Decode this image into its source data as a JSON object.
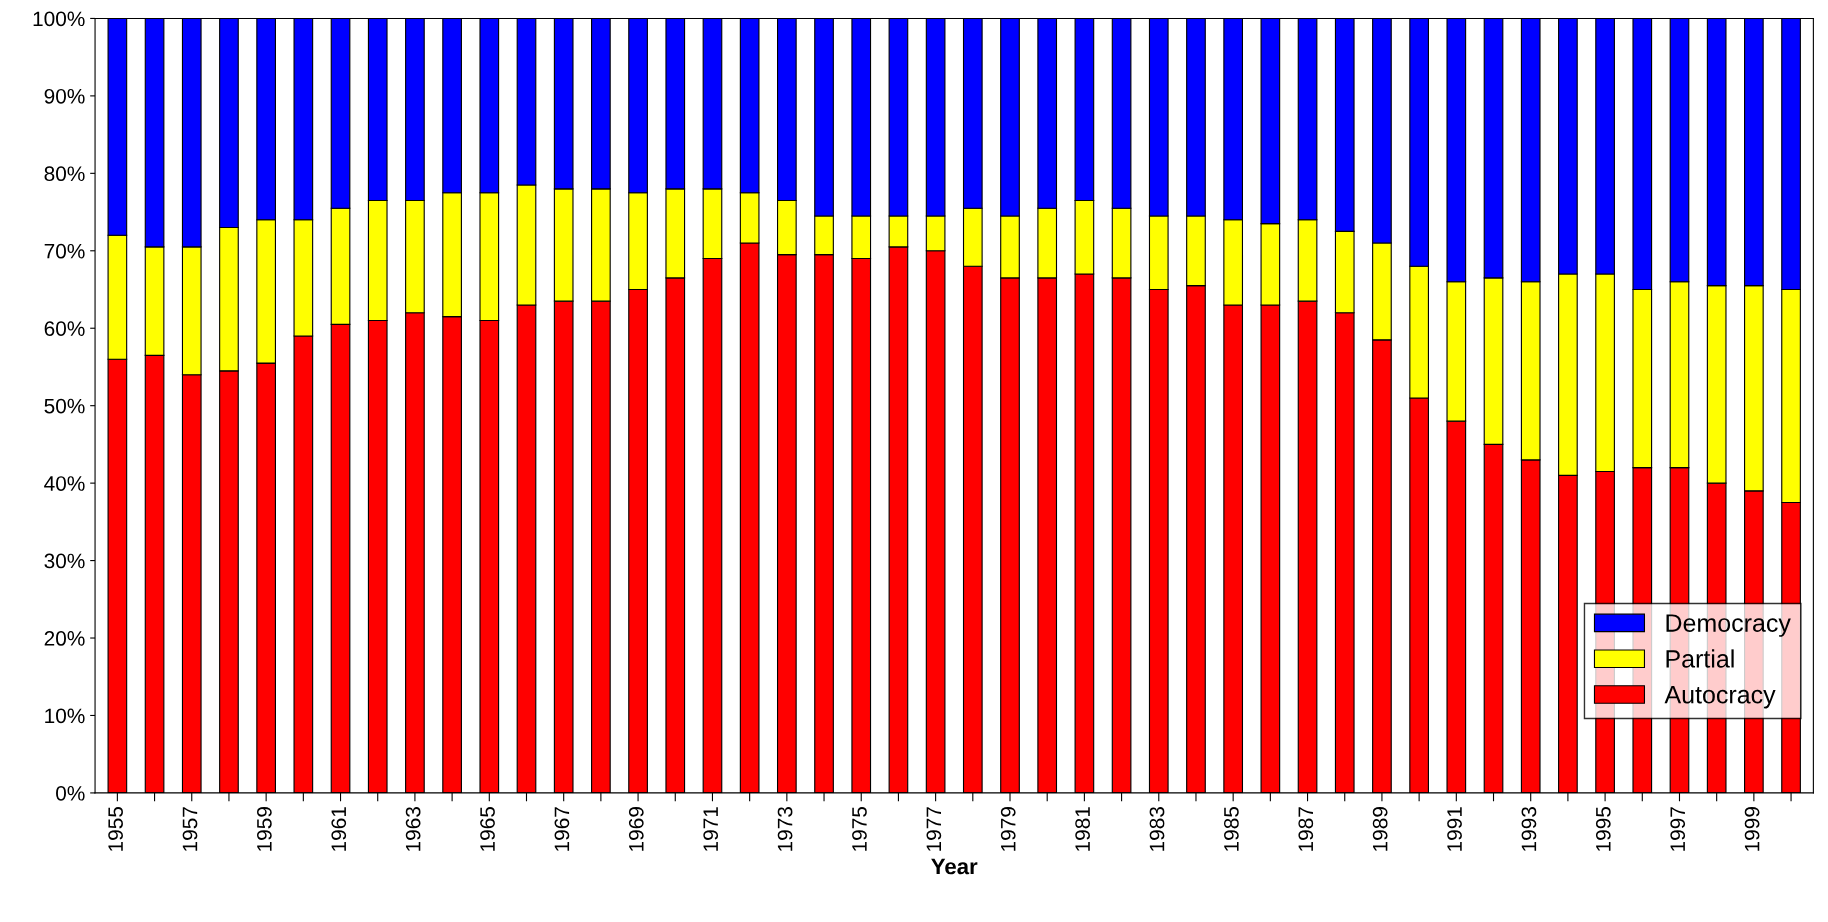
{
  "chart_data": {
    "type": "bar",
    "stacked": true,
    "xlabel": "Year",
    "categories": [
      "1955",
      null,
      "1957",
      null,
      "1959",
      null,
      "1961",
      null,
      "1963",
      null,
      "1965",
      null,
      "1967",
      null,
      "1969",
      null,
      "1971",
      null,
      "1973",
      null,
      "1975",
      null,
      "1977",
      null,
      "1979",
      null,
      "1981",
      null,
      "1983",
      null,
      "1985",
      null,
      "1987",
      null,
      "1989",
      null,
      "1991",
      null,
      "1993",
      null,
      "1995",
      null,
      "1997",
      null,
      "1999",
      null
    ],
    "series": [
      {
        "name": "Autocracy",
        "color": "#ff0000",
        "values": [
          56,
          56.5,
          54,
          54.5,
          55.5,
          59,
          60.5,
          61,
          62,
          61.5,
          61,
          63,
          63.5,
          63.5,
          65,
          66.5,
          69,
          71,
          69.5,
          69.5,
          69,
          70.5,
          70,
          68,
          66.5,
          66.5,
          67,
          66.5,
          65,
          65.5,
          63,
          63,
          63.5,
          62,
          58.5,
          51,
          48,
          45,
          43,
          41,
          41.5,
          42,
          42,
          40,
          39,
          37.5
        ]
      },
      {
        "name": "Partial",
        "color": "#ffff00",
        "values": [
          16,
          14,
          16.5,
          18.5,
          18.5,
          15,
          15,
          15.5,
          14.5,
          16,
          16.5,
          15.5,
          14.5,
          14.5,
          12.5,
          11.5,
          9,
          6.5,
          7,
          5,
          5.5,
          4,
          4.5,
          7.5,
          8,
          9,
          9.5,
          9,
          9.5,
          9,
          11,
          10.5,
          10.5,
          10.5,
          12.5,
          17,
          18,
          21.5,
          23,
          26,
          25.5,
          23,
          24,
          25.5,
          26.5,
          27.5
        ]
      },
      {
        "name": "Democracy",
        "color": "#0000ff",
        "values": [
          28,
          29.5,
          29.5,
          27,
          26,
          26,
          24.5,
          23.5,
          23.5,
          22.5,
          22.5,
          21.5,
          22,
          22,
          22.5,
          22,
          22,
          22.5,
          23.5,
          25.5,
          25.5,
          25.5,
          25.5,
          24.5,
          25.5,
          24.5,
          23.5,
          24.5,
          25.5,
          25.5,
          26,
          26.5,
          26,
          27.5,
          29,
          32,
          34,
          33.5,
          34,
          33,
          33,
          35,
          34,
          34.5,
          34.5,
          35
        ]
      }
    ],
    "ylim": [
      0,
      100
    ],
    "yticks": [
      {
        "value": 0,
        "label": "0%"
      },
      {
        "value": 10,
        "label": "10%"
      },
      {
        "value": 20,
        "label": "20%"
      },
      {
        "value": 30,
        "label": "30%"
      },
      {
        "value": 40,
        "label": "40%"
      },
      {
        "value": 50,
        "label": "50%"
      },
      {
        "value": 60,
        "label": "60%"
      },
      {
        "value": 70,
        "label": "70%"
      },
      {
        "value": 80,
        "label": "80%"
      },
      {
        "value": 90,
        "label": "90%"
      },
      {
        "value": 100,
        "label": "100%"
      }
    ],
    "legend": "lower right"
  }
}
